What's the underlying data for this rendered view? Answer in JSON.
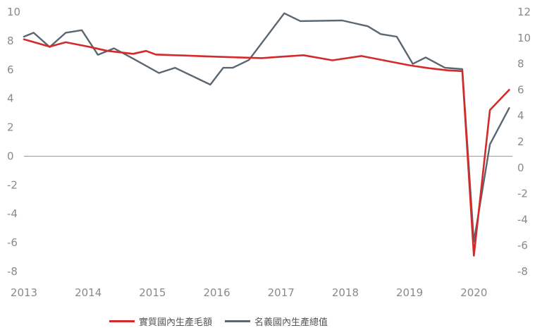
{
  "chart_data": {
    "type": "line",
    "title": "",
    "xlabel": "",
    "ylabel_left": "",
    "ylabel_right": "",
    "x_ticks": [
      "2013",
      "2014",
      "2015",
      "2016",
      "2017",
      "2018",
      "2019",
      "2020"
    ],
    "x_tick_values": [
      2013,
      2014,
      2015,
      2016,
      2017,
      2018,
      2019,
      2020
    ],
    "xlim": [
      2013,
      2020.6
    ],
    "ylim_left": [
      -8,
      10
    ],
    "ylim_right": [
      -8,
      12
    ],
    "left_ticks": [
      "10",
      "8",
      "6",
      "4",
      "2",
      "0",
      "-2",
      "-4",
      "-6",
      "-8"
    ],
    "left_tick_values": [
      10,
      8,
      6,
      4,
      2,
      0,
      -2,
      -4,
      -6,
      -8
    ],
    "right_ticks": [
      "12",
      "10",
      "8",
      "6",
      "4",
      "2",
      "0",
      "-2",
      "-4",
      "-6",
      "-8"
    ],
    "right_tick_values": [
      12,
      10,
      8,
      6,
      4,
      2,
      0,
      -2,
      -4,
      -6,
      -8
    ],
    "zero_line": true,
    "legend_position": "bottom",
    "series": [
      {
        "name": "實質國內生產毛額",
        "axis": "left",
        "color": "#d42a2a",
        "x": [
          2013.0,
          2013.4,
          2013.65,
          2014.0,
          2014.3,
          2014.7,
          2014.9,
          2015.05,
          2016.0,
          2016.7,
          2017.0,
          2017.35,
          2017.8,
          2018.25,
          2019.0,
          2019.3,
          2019.6,
          2019.82,
          2020.0,
          2020.25,
          2020.55
        ],
        "y": [
          8.1,
          7.6,
          7.9,
          7.6,
          7.3,
          7.1,
          7.3,
          7.05,
          6.9,
          6.8,
          6.9,
          7.0,
          6.65,
          6.95,
          6.3,
          6.1,
          5.95,
          5.9,
          -6.9,
          3.2,
          4.6
        ]
      },
      {
        "name": "名義國內生產總值",
        "axis": "right",
        "color": "#5b6770",
        "x": [
          2013.0,
          2013.15,
          2013.4,
          2013.65,
          2013.9,
          2014.15,
          2014.4,
          2014.7,
          2015.1,
          2015.35,
          2015.9,
          2016.1,
          2016.25,
          2016.5,
          2017.05,
          2017.3,
          2017.95,
          2018.35,
          2018.55,
          2018.8,
          2019.05,
          2019.25,
          2019.55,
          2019.82,
          2020.0,
          2020.25,
          2020.55
        ],
        "y": [
          10.1,
          10.4,
          9.3,
          10.4,
          10.6,
          8.7,
          9.2,
          8.4,
          7.3,
          7.7,
          6.4,
          7.7,
          7.7,
          8.3,
          11.9,
          11.3,
          11.35,
          10.9,
          10.3,
          10.1,
          8.0,
          8.5,
          7.7,
          7.6,
          -5.7,
          1.8,
          4.6
        ]
      }
    ]
  }
}
